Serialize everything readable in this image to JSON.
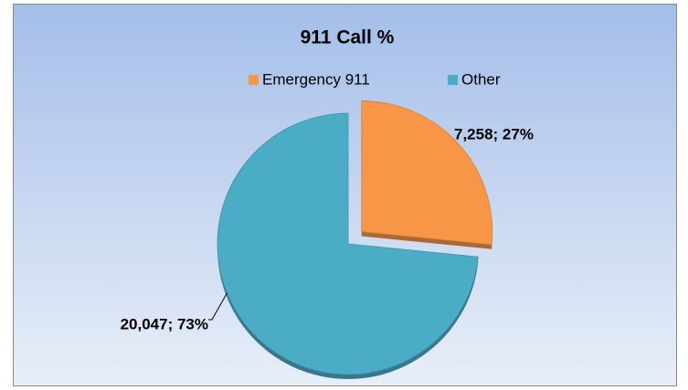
{
  "chart_data": {
    "type": "pie",
    "title": "911 Call %",
    "categories": [
      "Emergency 911",
      "Other"
    ],
    "values": [
      7258,
      20047
    ],
    "value_labels": [
      "7,258; 27%",
      "20,047; 73%"
    ],
    "colors": [
      "#f79646",
      "#4bacc6"
    ],
    "legend": "top"
  }
}
